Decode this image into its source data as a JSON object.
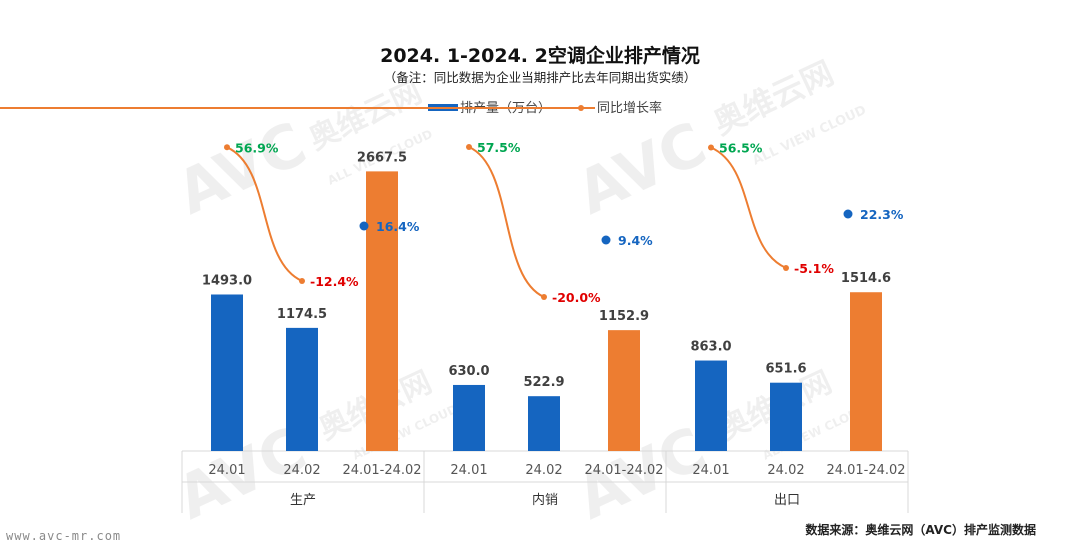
{
  "title": "2024. 1-2024. 2空调企业排产情况",
  "subtitle": "（备注：同比数据为企业当期排产比去年同期出货实绩）",
  "legend": {
    "bar_label": "排产量（万台）",
    "line_label": "同比增长率"
  },
  "watermark": {
    "logo": "AVC",
    "cn": "奥维云网",
    "en": "ALL VIEW CLOUD"
  },
  "footer": {
    "left": "www.avc-mr.com",
    "right": "数据来源：奥维云网（AVC）排产监测数据"
  },
  "colors": {
    "bar_blue": "#1565C0",
    "bar_orange": "#ED7D31",
    "line_orange": "#ED7D31",
    "pct_up": "#00A651",
    "pct_down": "#E00000",
    "pct_total": "#1565C0"
  },
  "chart_data": {
    "type": "bar",
    "ylim": [
      0,
      2900
    ],
    "groups": [
      {
        "name": "生产",
        "categories": [
          "24.01",
          "24.02",
          "24.01-24.02"
        ],
        "values": [
          1493.0,
          1174.5,
          2667.5
        ],
        "value_labels": [
          "1493.0",
          "1174.5",
          "2667.5"
        ],
        "yoy": [
          56.9,
          -12.4,
          16.4
        ],
        "yoy_labels": [
          "56.9%",
          "-12.4%",
          "16.4%"
        ]
      },
      {
        "name": "内销",
        "categories": [
          "24.01",
          "24.02",
          "24.01-24.02"
        ],
        "values": [
          630.0,
          522.9,
          1152.9
        ],
        "value_labels": [
          "630.0",
          "522.9",
          "1152.9"
        ],
        "yoy": [
          57.5,
          -20.0,
          9.4
        ],
        "yoy_labels": [
          "57.5%",
          "-20.0%",
          "9.4%"
        ]
      },
      {
        "name": "出口",
        "categories": [
          "24.01",
          "24.02",
          "24.01-24.02"
        ],
        "values": [
          863.0,
          651.6,
          1514.6
        ],
        "value_labels": [
          "863.0",
          "651.6",
          "1514.6"
        ],
        "yoy": [
          56.5,
          -5.1,
          22.3
        ],
        "yoy_labels": [
          "56.5%",
          "-5.1%",
          "22.3%"
        ]
      }
    ]
  }
}
